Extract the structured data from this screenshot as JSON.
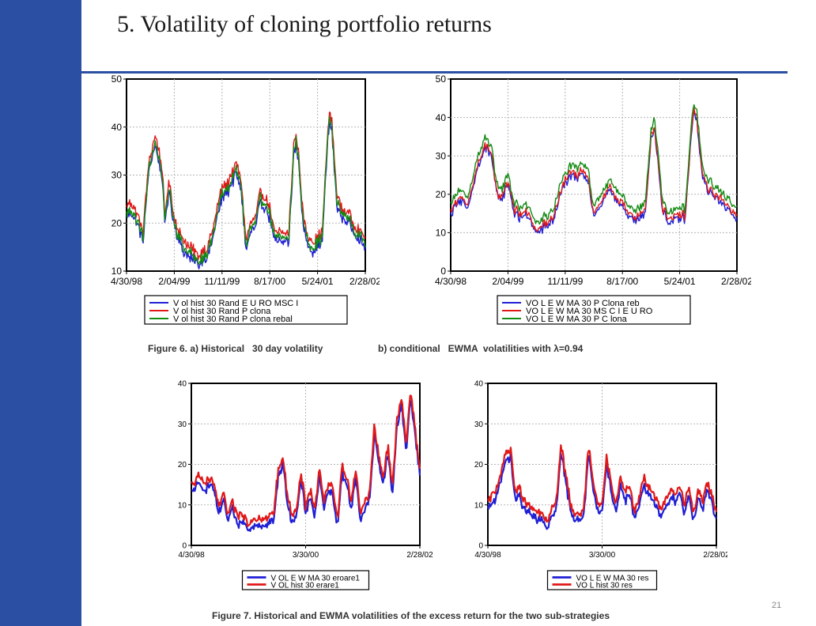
{
  "slide": {
    "title": "5. Volatility of cloning portfolio returns",
    "caption_fig6_a": "Figure 6. a) Historical   30 day volatility",
    "caption_fig6_b_prefix": "b) conditional   EWMA  volatilities with ",
    "caption_fig6_b_symbol": "λ",
    "caption_fig6_b_suffix": "=0.94",
    "caption_fig7": "Figure 7. Historical and EWMA volatilities of the excess return for the two sub-strategies",
    "page_number": "21"
  },
  "colors": {
    "sidebar": "#2a4fa3",
    "blue": "#1f1fd6",
    "red": "#e01818",
    "green": "#138a13"
  },
  "chart_data": [
    {
      "id": "fig6a",
      "type": "line",
      "x_ticks": [
        "4/30/98",
        "2/04/99",
        "11/11/99",
        "8/17/00",
        "5/24/01",
        "2/28/02"
      ],
      "ylim": [
        10,
        50
      ],
      "y_ticks": [
        10,
        20,
        30,
        40,
        50
      ],
      "grid": true,
      "legend_position": "bottom",
      "series": [
        {
          "name": "V ol hist 30 Rand E U RO MSC I",
          "color": "#1f1fd6",
          "offset": -0.8
        },
        {
          "name": "V ol hist 30 Rand P clona",
          "color": "#e01818",
          "offset": 1.2
        },
        {
          "name": "V ol hist 30 Rand P clona rebal",
          "color": "#138a13",
          "offset": 0
        }
      ],
      "anchors_x": [
        0,
        0.02,
        0.05,
        0.07,
        0.09,
        0.11,
        0.12,
        0.13,
        0.15,
        0.16,
        0.17,
        0.18,
        0.2,
        0.22,
        0.24,
        0.26,
        0.3,
        0.34,
        0.36,
        0.38,
        0.4,
        0.42,
        0.44,
        0.46,
        0.48,
        0.5,
        0.52,
        0.54,
        0.56,
        0.58,
        0.6,
        0.62,
        0.64,
        0.66,
        0.68,
        0.7,
        0.71,
        0.72,
        0.74,
        0.76,
        0.78,
        0.8,
        0.82,
        0.84,
        0.85,
        0.86,
        0.88,
        0.9,
        0.93,
        0.96,
        1.0
      ],
      "anchors_y": [
        22,
        23,
        20,
        17,
        30,
        35,
        37,
        35,
        30,
        20,
        25,
        27,
        20,
        17,
        15,
        14,
        12,
        14,
        17,
        22,
        26,
        27,
        29,
        31,
        28,
        15,
        19,
        20,
        25,
        24,
        22,
        17,
        17,
        17,
        17,
        35,
        37,
        34,
        20,
        16,
        15,
        16,
        17,
        36,
        42,
        40,
        25,
        22,
        21,
        18,
        16
      ]
    },
    {
      "id": "fig6b",
      "type": "line",
      "x_ticks": [
        "4/30/98",
        "2/04/99",
        "11/11/99",
        "8/17/00",
        "5/24/01",
        "2/28/02"
      ],
      "ylim": [
        0,
        50
      ],
      "y_ticks": [
        0,
        10,
        20,
        30,
        40,
        50
      ],
      "grid": true,
      "legend_position": "bottom",
      "series": [
        {
          "name": "VO L E W MA  30 P Clona reb",
          "color": "#1f1fd6",
          "offset": -1.2
        },
        {
          "name": "VO L E W MA  30 MS C I E U RO",
          "color": "#e01818",
          "offset": -0.4
        },
        {
          "name": "VO L E W MA  30 P C lona",
          "color": "#138a13",
          "offset": 1.5
        }
      ],
      "anchors_x": [
        0,
        0.03,
        0.06,
        0.09,
        0.12,
        0.14,
        0.16,
        0.18,
        0.2,
        0.22,
        0.24,
        0.26,
        0.28,
        0.3,
        0.32,
        0.34,
        0.36,
        0.38,
        0.4,
        0.42,
        0.44,
        0.46,
        0.48,
        0.5,
        0.52,
        0.54,
        0.56,
        0.58,
        0.6,
        0.62,
        0.64,
        0.66,
        0.68,
        0.7,
        0.71,
        0.72,
        0.74,
        0.76,
        0.78,
        0.8,
        0.82,
        0.84,
        0.85,
        0.86,
        0.88,
        0.9,
        0.93,
        0.96,
        1.0
      ],
      "anchors_y": [
        16,
        20,
        17,
        27,
        33,
        32,
        21,
        20,
        24,
        17,
        15,
        16,
        14,
        11,
        12,
        13,
        15,
        20,
        24,
        26,
        25,
        27,
        25,
        15,
        18,
        20,
        22,
        20,
        18,
        15,
        15,
        15,
        16,
        36,
        38,
        33,
        17,
        14,
        14,
        15,
        15,
        36,
        43,
        40,
        25,
        22,
        20,
        18,
        15
      ]
    },
    {
      "id": "fig7a",
      "type": "line",
      "x_ticks": [
        "4/30/98",
        "3/30/00",
        "2/28/02"
      ],
      "ylim": [
        0,
        40
      ],
      "y_ticks": [
        0,
        10,
        20,
        30,
        40
      ],
      "grid": true,
      "legend_position": "bottom",
      "series": [
        {
          "name": "V OL E W MA 30 eroare1",
          "color": "#1f1fd6",
          "offset": -1.0
        },
        {
          "name": "V OL hist 30 erare1",
          "color": "#e01818",
          "offset": 0.8
        }
      ],
      "anchors_x": [
        0,
        0.03,
        0.06,
        0.09,
        0.12,
        0.14,
        0.16,
        0.18,
        0.2,
        0.22,
        0.25,
        0.28,
        0.32,
        0.36,
        0.38,
        0.4,
        0.42,
        0.44,
        0.46,
        0.48,
        0.5,
        0.52,
        0.54,
        0.56,
        0.58,
        0.6,
        0.62,
        0.64,
        0.66,
        0.68,
        0.7,
        0.72,
        0.74,
        0.76,
        0.78,
        0.8,
        0.82,
        0.84,
        0.86,
        0.88,
        0.9,
        0.92,
        0.94,
        0.96,
        0.98,
        1.0
      ],
      "anchors_y": [
        14,
        16,
        15,
        16,
        9,
        12,
        7,
        10,
        6,
        7,
        5,
        6,
        6,
        7,
        18,
        21,
        12,
        7,
        8,
        17,
        9,
        13,
        8,
        18,
        10,
        15,
        13,
        6,
        19,
        16,
        10,
        18,
        7,
        10,
        12,
        28,
        22,
        16,
        24,
        14,
        30,
        36,
        24,
        38,
        28,
        18
      ]
    },
    {
      "id": "fig7b",
      "type": "line",
      "x_ticks": [
        "4/30/98",
        "3/30/00",
        "2/28/02"
      ],
      "ylim": [
        0,
        40
      ],
      "y_ticks": [
        0,
        10,
        20,
        30,
        40
      ],
      "grid": true,
      "legend_position": "bottom",
      "series": [
        {
          "name": "VO L E W MA 30 res",
          "color": "#1f1fd6",
          "offset": -1.0
        },
        {
          "name": "VO L hist 30 res",
          "color": "#e01818",
          "offset": 0.8
        }
      ],
      "anchors_x": [
        0,
        0.03,
        0.06,
        0.08,
        0.1,
        0.12,
        0.14,
        0.16,
        0.18,
        0.2,
        0.22,
        0.24,
        0.26,
        0.28,
        0.3,
        0.32,
        0.34,
        0.36,
        0.38,
        0.4,
        0.42,
        0.44,
        0.46,
        0.48,
        0.5,
        0.52,
        0.54,
        0.56,
        0.58,
        0.6,
        0.62,
        0.64,
        0.66,
        0.68,
        0.7,
        0.72,
        0.74,
        0.76,
        0.78,
        0.8,
        0.82,
        0.84,
        0.86,
        0.88,
        0.9,
        0.92,
        0.94,
        0.96,
        0.98,
        1.0
      ],
      "anchors_y": [
        10,
        12,
        18,
        22,
        23,
        12,
        13,
        10,
        9,
        8,
        7,
        7,
        5,
        8,
        10,
        24,
        17,
        10,
        7,
        7,
        8,
        24,
        15,
        10,
        9,
        21,
        14,
        10,
        16,
        12,
        14,
        8,
        10,
        16,
        14,
        12,
        10,
        8,
        11,
        13,
        12,
        14,
        9,
        14,
        7,
        13,
        10,
        14,
        12,
        7
      ]
    }
  ]
}
